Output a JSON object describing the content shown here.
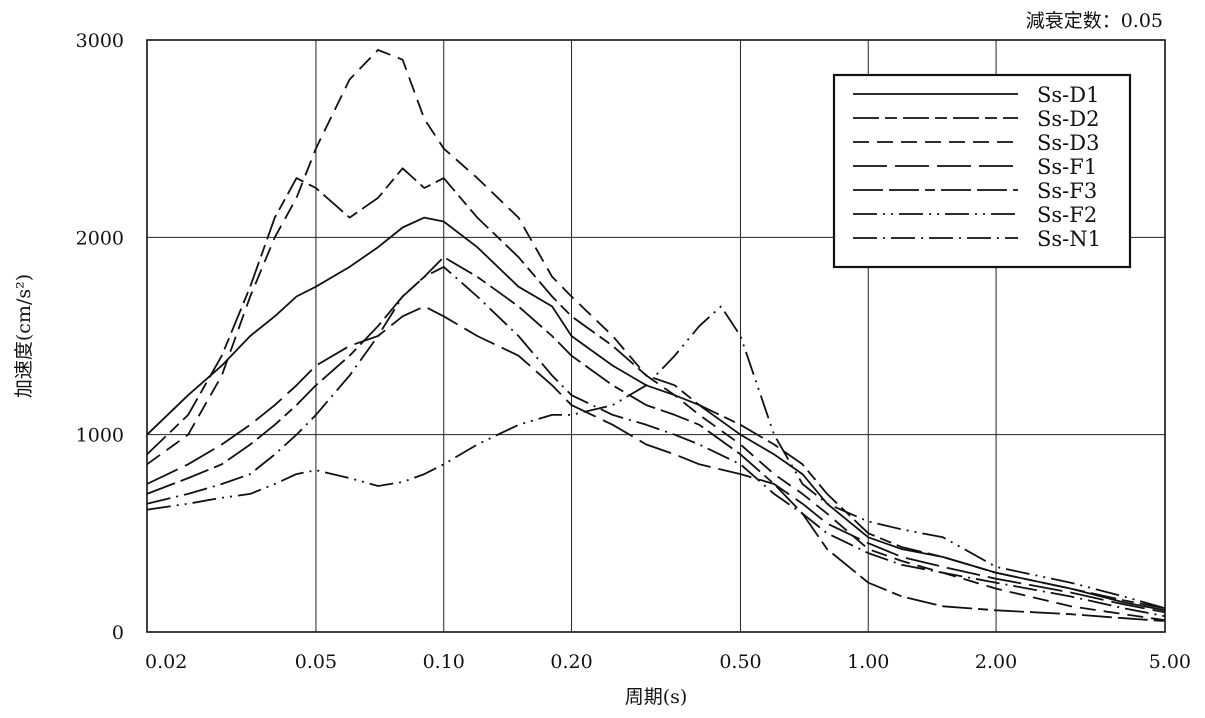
{
  "chart_data": {
    "type": "line",
    "title": "",
    "annotation": "減衰定数：0.05",
    "xlabel": "周期(s)",
    "ylabel": "加速度(cm/s²)",
    "xscale": "log",
    "xlim": [
      0.02,
      5.0
    ],
    "ylim": [
      0,
      3000
    ],
    "grid": true,
    "legend_position": "top-right",
    "x_ticks": [
      0.02,
      0.05,
      0.1,
      0.2,
      0.5,
      1.0,
      2.0,
      5.0
    ],
    "x_tick_labels": [
      "0.02",
      "0.05",
      "0.10",
      "0.20",
      "0.50",
      "1.00",
      "2.00",
      "5.00"
    ],
    "y_ticks": [
      0,
      1000,
      2000,
      3000
    ],
    "y_tick_labels": [
      "0",
      "1000",
      "2000",
      "3000"
    ],
    "line_color": "#111111",
    "series": [
      {
        "name": "Ss-D1",
        "style": "solid",
        "x": [
          0.02,
          0.025,
          0.03,
          0.035,
          0.04,
          0.045,
          0.05,
          0.06,
          0.07,
          0.08,
          0.09,
          0.1,
          0.12,
          0.15,
          0.18,
          0.2,
          0.25,
          0.3,
          0.35,
          0.4,
          0.5,
          0.6,
          0.7,
          0.8,
          1.0,
          1.2,
          1.5,
          2.0,
          3.0,
          4.0,
          5.0
        ],
        "y": [
          1000,
          1200,
          1350,
          1500,
          1600,
          1700,
          1750,
          1850,
          1950,
          2050,
          2100,
          2080,
          1950,
          1750,
          1650,
          1500,
          1350,
          1250,
          1200,
          1150,
          1000,
          900,
          800,
          650,
          480,
          420,
          380,
          300,
          220,
          150,
          110
        ]
      },
      {
        "name": "Ss-D2",
        "style": "long-short",
        "x": [
          0.02,
          0.025,
          0.03,
          0.035,
          0.04,
          0.045,
          0.05,
          0.06,
          0.07,
          0.08,
          0.09,
          0.1,
          0.12,
          0.15,
          0.18,
          0.2,
          0.25,
          0.3,
          0.35,
          0.4,
          0.5,
          0.6,
          0.7,
          0.8,
          1.0,
          1.2,
          1.5,
          2.0,
          3.0,
          4.0,
          5.0
        ],
        "y": [
          900,
          1100,
          1400,
          1750,
          2100,
          2300,
          2250,
          2100,
          2200,
          2350,
          2250,
          2300,
          2100,
          1900,
          1700,
          1600,
          1450,
          1300,
          1250,
          1150,
          1050,
          950,
          850,
          700,
          500,
          430,
          380,
          300,
          220,
          160,
          120
        ]
      },
      {
        "name": "Ss-D3",
        "style": "dashed",
        "x": [
          0.02,
          0.025,
          0.03,
          0.035,
          0.04,
          0.045,
          0.05,
          0.06,
          0.07,
          0.08,
          0.09,
          0.1,
          0.12,
          0.15,
          0.18,
          0.2,
          0.25,
          0.3,
          0.35,
          0.4,
          0.5,
          0.6,
          0.7,
          0.8,
          1.0,
          1.2,
          1.5,
          2.0,
          3.0,
          4.0,
          5.0
        ],
        "y": [
          850,
          1000,
          1300,
          1700,
          2000,
          2200,
          2450,
          2800,
          2950,
          2900,
          2600,
          2450,
          2300,
          2100,
          1800,
          1700,
          1500,
          1300,
          1200,
          1100,
          950,
          800,
          700,
          600,
          420,
          360,
          300,
          220,
          130,
          90,
          60
        ]
      },
      {
        "name": "Ss-F1",
        "style": "long-dash",
        "x": [
          0.02,
          0.025,
          0.03,
          0.035,
          0.04,
          0.045,
          0.05,
          0.06,
          0.07,
          0.08,
          0.09,
          0.1,
          0.12,
          0.15,
          0.18,
          0.2,
          0.25,
          0.3,
          0.35,
          0.4,
          0.5,
          0.6,
          0.7,
          0.8,
          1.0,
          1.2,
          1.5,
          2.0,
          3.0,
          4.0,
          5.0
        ],
        "y": [
          750,
          850,
          950,
          1050,
          1150,
          1250,
          1350,
          1450,
          1500,
          1600,
          1650,
          1600,
          1500,
          1400,
          1250,
          1150,
          1050,
          950,
          900,
          850,
          800,
          750,
          650,
          550,
          450,
          380,
          330,
          270,
          200,
          140,
          100
        ]
      },
      {
        "name": "Ss-F3",
        "style": "long-long-short",
        "x": [
          0.02,
          0.025,
          0.03,
          0.035,
          0.04,
          0.045,
          0.05,
          0.06,
          0.07,
          0.08,
          0.09,
          0.1,
          0.12,
          0.15,
          0.18,
          0.2,
          0.25,
          0.3,
          0.35,
          0.4,
          0.5,
          0.6,
          0.7,
          0.8,
          1.0,
          1.2,
          1.5,
          2.0,
          3.0,
          4.0,
          5.0
        ],
        "y": [
          700,
          780,
          850,
          950,
          1050,
          1150,
          1250,
          1400,
          1550,
          1700,
          1800,
          1900,
          1800,
          1650,
          1500,
          1400,
          1250,
          1150,
          1100,
          1050,
          900,
          750,
          600,
          420,
          250,
          180,
          130,
          110,
          90,
          70,
          55
        ]
      },
      {
        "name": "Ss-F2",
        "style": "dash-dot-dot",
        "x": [
          0.02,
          0.025,
          0.03,
          0.035,
          0.04,
          0.045,
          0.05,
          0.06,
          0.07,
          0.08,
          0.09,
          0.1,
          0.12,
          0.15,
          0.18,
          0.2,
          0.25,
          0.3,
          0.35,
          0.4,
          0.45,
          0.5,
          0.6,
          0.7,
          0.8,
          1.0,
          1.2,
          1.5,
          2.0,
          3.0,
          4.0,
          5.0
        ],
        "y": [
          620,
          650,
          680,
          700,
          750,
          800,
          820,
          780,
          740,
          760,
          800,
          850,
          950,
          1050,
          1100,
          1100,
          1150,
          1250,
          1400,
          1550,
          1650,
          1500,
          1000,
          750,
          650,
          560,
          520,
          480,
          330,
          250,
          180,
          120
        ]
      },
      {
        "name": "Ss-N1",
        "style": "dash-dot",
        "x": [
          0.02,
          0.025,
          0.03,
          0.035,
          0.04,
          0.045,
          0.05,
          0.06,
          0.07,
          0.08,
          0.09,
          0.1,
          0.12,
          0.15,
          0.18,
          0.2,
          0.25,
          0.3,
          0.35,
          0.4,
          0.5,
          0.6,
          0.7,
          0.8,
          1.0,
          1.2,
          1.5,
          2.0,
          3.0,
          4.0,
          5.0
        ],
        "y": [
          650,
          700,
          750,
          800,
          900,
          1000,
          1100,
          1300,
          1500,
          1700,
          1800,
          1850,
          1700,
          1500,
          1300,
          1200,
          1100,
          1050,
          1000,
          950,
          850,
          700,
          600,
          500,
          400,
          340,
          300,
          250,
          180,
          120,
          80
        ]
      }
    ]
  }
}
